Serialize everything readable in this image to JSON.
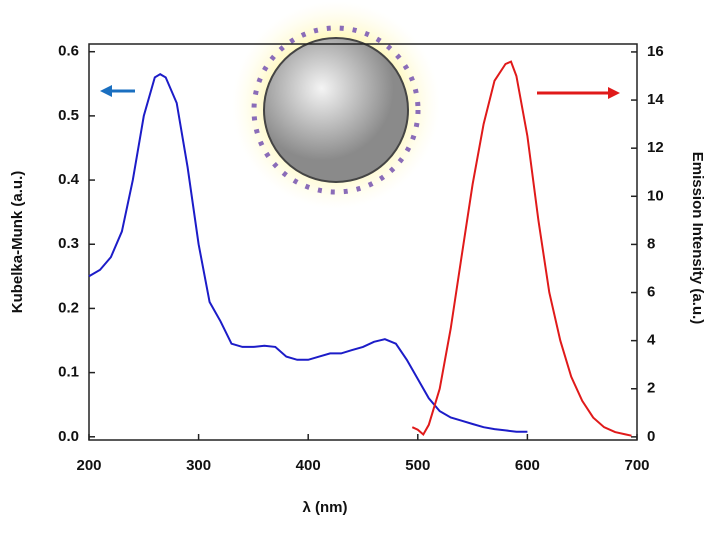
{
  "chart_data": {
    "type": "line",
    "xlabel": "λ (nm)",
    "ylabel": "Kubelka-Munk (a.u.)",
    "y2label": "Emission Intensity (a.u.)",
    "xlim": [
      200,
      700
    ],
    "xticks": [
      200,
      300,
      400,
      500,
      600,
      700
    ],
    "ylim": [
      -0.005,
      0.612
    ],
    "yticks": [
      {
        "value": 0,
        "label": "0.0"
      },
      0.1,
      0.2,
      0.3,
      0.4,
      0.5,
      0.6
    ],
    "y2lim": [
      -0.13,
      16.33
    ],
    "y2ticks": [
      0,
      2,
      4,
      6,
      8,
      10,
      12,
      14,
      16
    ],
    "series": [
      {
        "color": "#1c1cc8",
        "x": [
          200,
          210,
          220,
          230,
          240,
          250,
          260,
          265,
          270,
          280,
          290,
          300,
          310,
          320,
          330,
          340,
          350,
          360,
          370,
          380,
          390,
          400,
          410,
          420,
          430,
          440,
          450,
          460,
          470,
          480,
          490,
          500,
          510,
          520,
          530,
          540,
          550,
          560,
          570,
          580,
          590,
          600
        ],
        "values": [
          0.25,
          0.26,
          0.28,
          0.32,
          0.4,
          0.5,
          0.56,
          0.565,
          0.56,
          0.52,
          0.42,
          0.3,
          0.21,
          0.18,
          0.145,
          0.14,
          0.14,
          0.142,
          0.14,
          0.125,
          0.12,
          0.12,
          0.125,
          0.13,
          0.13,
          0.135,
          0.14,
          0.148,
          0.152,
          0.145,
          0.12,
          0.09,
          0.06,
          0.04,
          0.03,
          0.025,
          0.02,
          0.015,
          0.012,
          0.01,
          0.008,
          0.008
        ]
      },
      {
        "color": "#e01a1a",
        "axis": "y2",
        "x": [
          495,
          500,
          505,
          510,
          520,
          530,
          540,
          550,
          560,
          570,
          580,
          585,
          590,
          600,
          610,
          620,
          630,
          640,
          650,
          660,
          670,
          680,
          690,
          695
        ],
        "values": [
          0.4,
          0.3,
          0.1,
          0.5,
          2,
          4.5,
          7.5,
          10.5,
          13,
          14.8,
          15.5,
          15.6,
          15,
          12.5,
          9,
          6,
          4,
          2.5,
          1.5,
          0.8,
          0.4,
          0.2,
          0.1,
          0.05
        ]
      }
    ]
  }
}
